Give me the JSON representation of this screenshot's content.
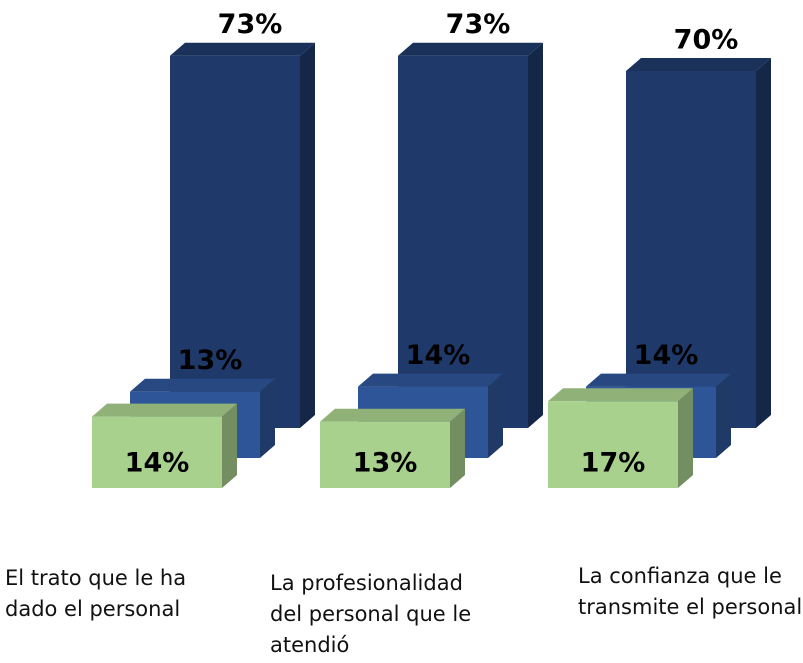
{
  "chart_data": {
    "type": "bar3d",
    "categories": [
      "El trato que le ha dado el personal",
      "La profesionalidad del personal que le atendió",
      "La confianza que le transmite el personal"
    ],
    "series": [
      {
        "color": "#1f3a6a",
        "values": [
          73,
          73,
          70
        ],
        "value_labels": [
          "73%",
          "73%",
          "70%"
        ]
      },
      {
        "color": "#2e5597",
        "values": [
          13,
          14,
          14
        ],
        "value_labels": [
          "13%",
          "14%",
          "14%"
        ]
      },
      {
        "color": "#a9d18e",
        "values": [
          14,
          13,
          17
        ],
        "value_labels": [
          "14%",
          "13%",
          "17%"
        ]
      }
    ]
  }
}
